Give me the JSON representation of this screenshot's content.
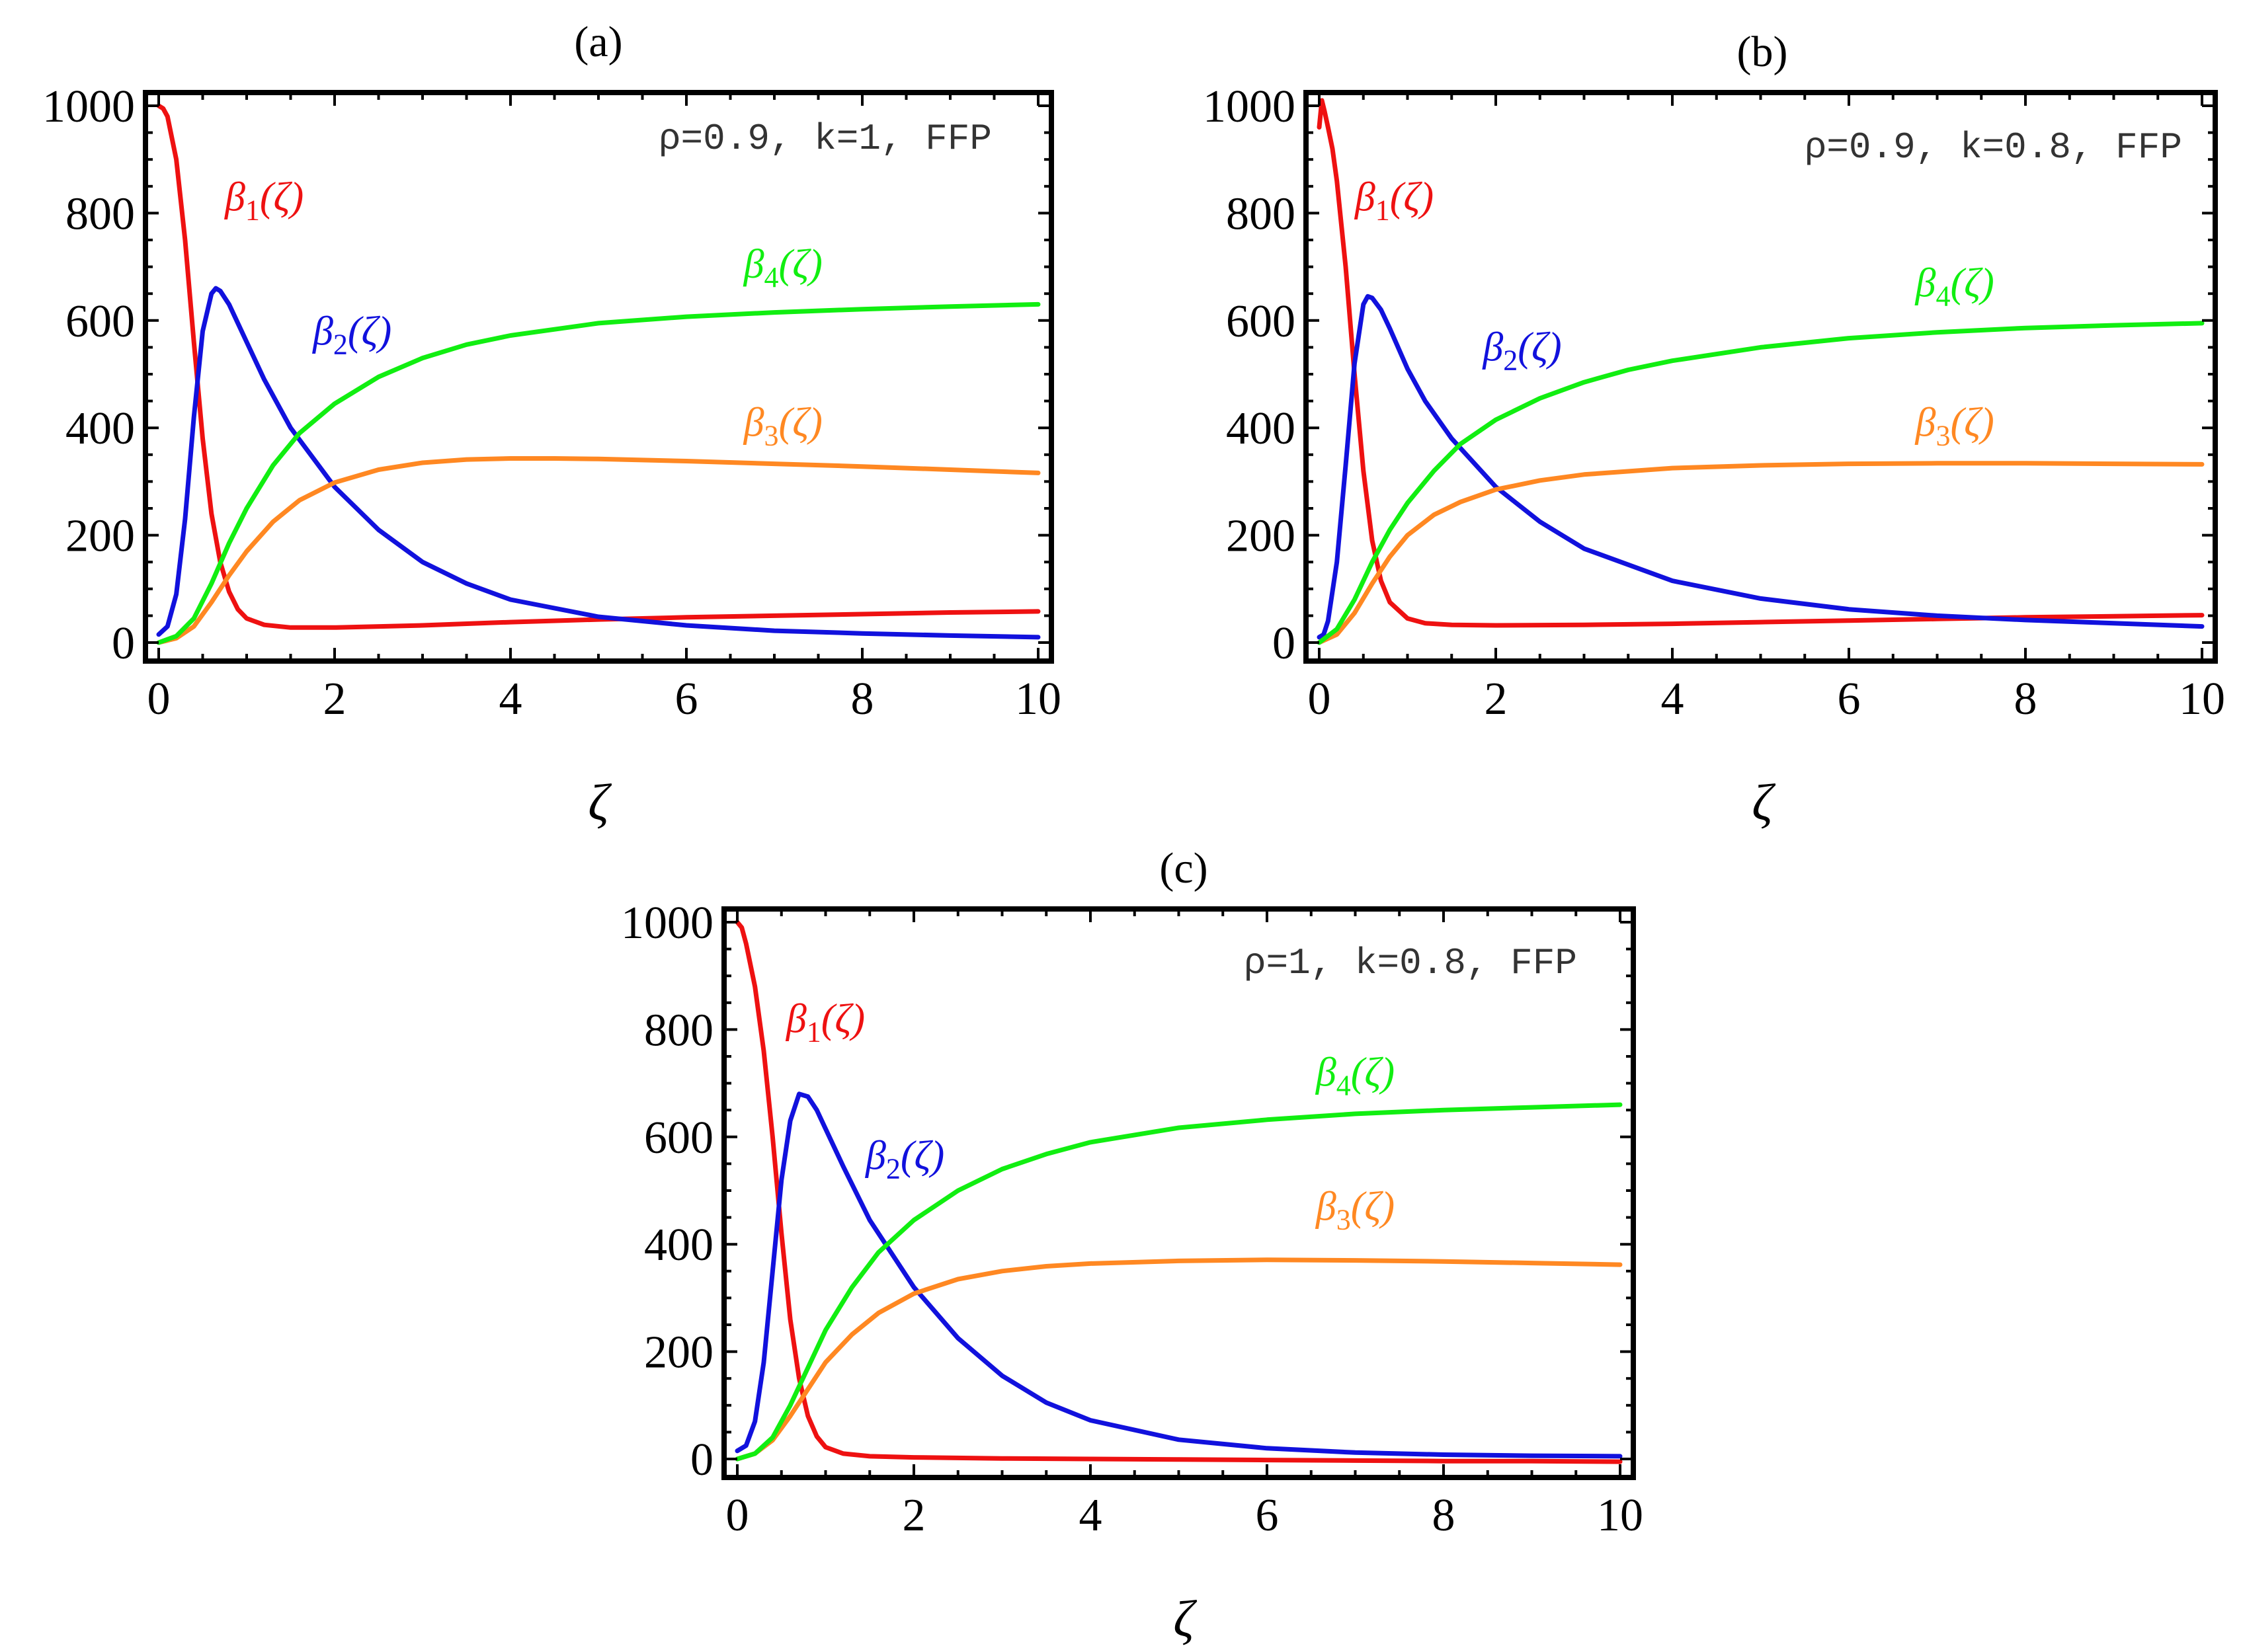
{
  "figure": {
    "x_label": "ζ",
    "colors": {
      "beta1": "#ee1111",
      "beta2": "#1111dd",
      "beta3": "#ff8822",
      "beta4": "#11ee11"
    }
  },
  "chart_data": [
    {
      "id": "a",
      "type": "line",
      "title": "(a)",
      "annotation": "ρ=0.9, k=1, FFP",
      "xlabel": "ζ",
      "ylabel": "",
      "xlim": [
        0,
        10
      ],
      "ylim": [
        0,
        1000
      ],
      "xticks": [
        0,
        2,
        4,
        6,
        8,
        10
      ],
      "yticks": [
        0,
        200,
        400,
        600,
        800,
        1000
      ],
      "series": [
        {
          "name": "β1(ζ)",
          "color": "#ee1111",
          "x": [
            0,
            0.05,
            0.1,
            0.2,
            0.3,
            0.4,
            0.5,
            0.6,
            0.7,
            0.8,
            0.9,
            1.0,
            1.2,
            1.5,
            2,
            3,
            4,
            5,
            6,
            7,
            8,
            9,
            10
          ],
          "y": [
            1000,
            995,
            980,
            900,
            750,
            560,
            380,
            240,
            150,
            95,
            62,
            45,
            33,
            28,
            28,
            32,
            38,
            43,
            47,
            50,
            53,
            56,
            58
          ]
        },
        {
          "name": "β2(ζ)",
          "color": "#1111dd",
          "x": [
            0,
            0.1,
            0.2,
            0.3,
            0.4,
            0.5,
            0.6,
            0.65,
            0.7,
            0.8,
            1.0,
            1.2,
            1.5,
            2,
            2.5,
            3,
            3.5,
            4,
            5,
            6,
            7,
            8,
            9,
            10
          ],
          "y": [
            15,
            30,
            90,
            230,
            420,
            580,
            650,
            660,
            655,
            630,
            560,
            490,
            400,
            290,
            210,
            150,
            110,
            80,
            48,
            32,
            22,
            17,
            13,
            10
          ]
        },
        {
          "name": "β3(ζ)",
          "color": "#ff8822",
          "x": [
            0,
            0.2,
            0.4,
            0.6,
            0.8,
            1.0,
            1.3,
            1.6,
            2,
            2.5,
            3,
            3.5,
            4,
            4.5,
            5,
            6,
            7,
            8,
            9,
            10
          ],
          "y": [
            0,
            8,
            30,
            75,
            125,
            170,
            225,
            265,
            298,
            322,
            335,
            341,
            343,
            343,
            342,
            338,
            333,
            328,
            322,
            316
          ]
        },
        {
          "name": "β4(ζ)",
          "color": "#11ee11",
          "x": [
            0,
            0.2,
            0.4,
            0.6,
            0.8,
            1.0,
            1.3,
            1.6,
            2,
            2.5,
            3,
            3.5,
            4,
            5,
            6,
            7,
            8,
            9,
            10
          ],
          "y": [
            0,
            12,
            45,
            110,
            185,
            250,
            330,
            390,
            445,
            495,
            530,
            555,
            572,
            595,
            607,
            615,
            621,
            626,
            630
          ]
        }
      ],
      "labels": [
        {
          "series": 0,
          "text": "β1(ζ)",
          "at": [
            1.2,
            805
          ]
        },
        {
          "series": 1,
          "text": "β2(ζ)",
          "at": [
            2.2,
            555
          ]
        },
        {
          "series": 2,
          "text": "β3(ζ)",
          "at": [
            7.1,
            385
          ]
        },
        {
          "series": 3,
          "text": "β4(ζ)",
          "at": [
            7.1,
            680
          ]
        }
      ]
    },
    {
      "id": "b",
      "type": "line",
      "title": "(b)",
      "annotation": "ρ=0.9, k=0.8, FFP",
      "xlabel": "ζ",
      "ylabel": "",
      "xlim": [
        0,
        10
      ],
      "ylim": [
        0,
        1000
      ],
      "xticks": [
        0,
        2,
        4,
        6,
        8,
        10
      ],
      "yticks": [
        0,
        200,
        400,
        600,
        800,
        1000
      ],
      "series": [
        {
          "name": "β1(ζ)",
          "color": "#ee1111",
          "x": [
            0,
            0.03,
            0.06,
            0.1,
            0.15,
            0.2,
            0.3,
            0.4,
            0.5,
            0.6,
            0.7,
            0.8,
            1.0,
            1.2,
            1.5,
            2,
            3,
            4,
            5,
            6,
            7,
            8,
            9,
            10
          ],
          "y": [
            960,
            1010,
            990,
            960,
            920,
            860,
            700,
            500,
            320,
            190,
            115,
            75,
            45,
            36,
            33,
            32,
            33,
            35,
            38,
            41,
            44,
            47,
            49,
            51
          ]
        },
        {
          "name": "β2(ζ)",
          "color": "#1111dd",
          "x": [
            0,
            0.05,
            0.1,
            0.2,
            0.3,
            0.4,
            0.5,
            0.55,
            0.6,
            0.7,
            0.8,
            1.0,
            1.2,
            1.5,
            2,
            2.5,
            3,
            4,
            5,
            6,
            7,
            8,
            9,
            10
          ],
          "y": [
            10,
            15,
            40,
            150,
            330,
            520,
            630,
            645,
            642,
            620,
            585,
            510,
            450,
            380,
            290,
            225,
            175,
            115,
            82,
            62,
            50,
            42,
            36,
            30
          ]
        },
        {
          "name": "β3(ζ)",
          "color": "#ff8822",
          "x": [
            0,
            0.2,
            0.4,
            0.6,
            0.8,
            1.0,
            1.3,
            1.6,
            2,
            2.5,
            3,
            4,
            5,
            6,
            7,
            8,
            9,
            10
          ],
          "y": [
            0,
            15,
            55,
            110,
            160,
            200,
            238,
            262,
            285,
            302,
            313,
            325,
            330,
            333,
            334,
            334,
            333,
            332
          ]
        },
        {
          "name": "β4(ζ)",
          "color": "#11ee11",
          "x": [
            0,
            0.2,
            0.4,
            0.6,
            0.8,
            1.0,
            1.3,
            1.6,
            2,
            2.5,
            3,
            3.5,
            4,
            5,
            6,
            7,
            8,
            9,
            10
          ],
          "y": [
            0,
            25,
            80,
            150,
            210,
            260,
            320,
            370,
            415,
            455,
            485,
            508,
            525,
            550,
            567,
            578,
            586,
            591,
            595
          ]
        }
      ],
      "labels": [
        {
          "series": 0,
          "text": "β1(ζ)",
          "at": [
            0.85,
            805
          ]
        },
        {
          "series": 1,
          "text": "β2(ζ)",
          "at": [
            2.3,
            525
          ]
        },
        {
          "series": 2,
          "text": "β3(ζ)",
          "at": [
            7.2,
            385
          ]
        },
        {
          "series": 3,
          "text": "β4(ζ)",
          "at": [
            7.2,
            645
          ]
        }
      ]
    },
    {
      "id": "c",
      "type": "line",
      "title": "(c)",
      "annotation": "ρ=1, k=0.8, FFP",
      "xlabel": "ζ",
      "ylabel": "",
      "xlim": [
        0,
        10
      ],
      "ylim": [
        0,
        1000
      ],
      "xticks": [
        0,
        2,
        4,
        6,
        8,
        10
      ],
      "yticks": [
        0,
        200,
        400,
        600,
        800,
        1000
      ],
      "series": [
        {
          "name": "β1(ζ)",
          "color": "#ee1111",
          "x": [
            0,
            0.05,
            0.1,
            0.2,
            0.3,
            0.4,
            0.5,
            0.6,
            0.7,
            0.8,
            0.9,
            1.0,
            1.2,
            1.5,
            2,
            3,
            4,
            5,
            6,
            7,
            8,
            9,
            10
          ],
          "y": [
            1000,
            990,
            960,
            880,
            760,
            600,
            420,
            260,
            150,
            80,
            42,
            22,
            10,
            5,
            3,
            1,
            0,
            -1,
            -2,
            -3,
            -4,
            -4,
            -5
          ]
        },
        {
          "name": "β2(ζ)",
          "color": "#1111dd",
          "x": [
            0,
            0.1,
            0.2,
            0.3,
            0.4,
            0.5,
            0.6,
            0.7,
            0.8,
            0.9,
            1.0,
            1.2,
            1.5,
            2,
            2.5,
            3,
            3.5,
            4,
            5,
            6,
            7,
            8,
            9,
            10
          ],
          "y": [
            15,
            25,
            70,
            180,
            350,
            520,
            630,
            680,
            675,
            650,
            615,
            545,
            445,
            320,
            225,
            155,
            105,
            72,
            36,
            20,
            12,
            8,
            6,
            5
          ]
        },
        {
          "name": "β3(ζ)",
          "color": "#ff8822",
          "x": [
            0,
            0.2,
            0.4,
            0.6,
            0.8,
            1.0,
            1.3,
            1.6,
            2,
            2.5,
            3,
            3.5,
            4,
            5,
            6,
            7,
            8,
            9,
            10
          ],
          "y": [
            0,
            10,
            35,
            80,
            130,
            180,
            232,
            272,
            308,
            335,
            350,
            359,
            364,
            369,
            371,
            370,
            368,
            365,
            362
          ]
        },
        {
          "name": "β4(ζ)",
          "color": "#11ee11",
          "x": [
            0,
            0.2,
            0.4,
            0.6,
            0.8,
            1.0,
            1.3,
            1.6,
            2,
            2.5,
            3,
            3.5,
            4,
            5,
            6,
            7,
            8,
            9,
            10
          ],
          "y": [
            0,
            10,
            40,
            100,
            170,
            240,
            320,
            385,
            445,
            500,
            540,
            568,
            590,
            617,
            632,
            643,
            650,
            655,
            660
          ]
        }
      ],
      "labels": [
        {
          "series": 0,
          "text": "β1(ζ)",
          "at": [
            1.0,
            795
          ]
        },
        {
          "series": 1,
          "text": "β2(ζ)",
          "at": [
            1.9,
            540
          ]
        },
        {
          "series": 2,
          "text": "β3(ζ)",
          "at": [
            7.0,
            445
          ]
        },
        {
          "series": 3,
          "text": "β4(ζ)",
          "at": [
            7.0,
            695
          ]
        }
      ]
    }
  ]
}
